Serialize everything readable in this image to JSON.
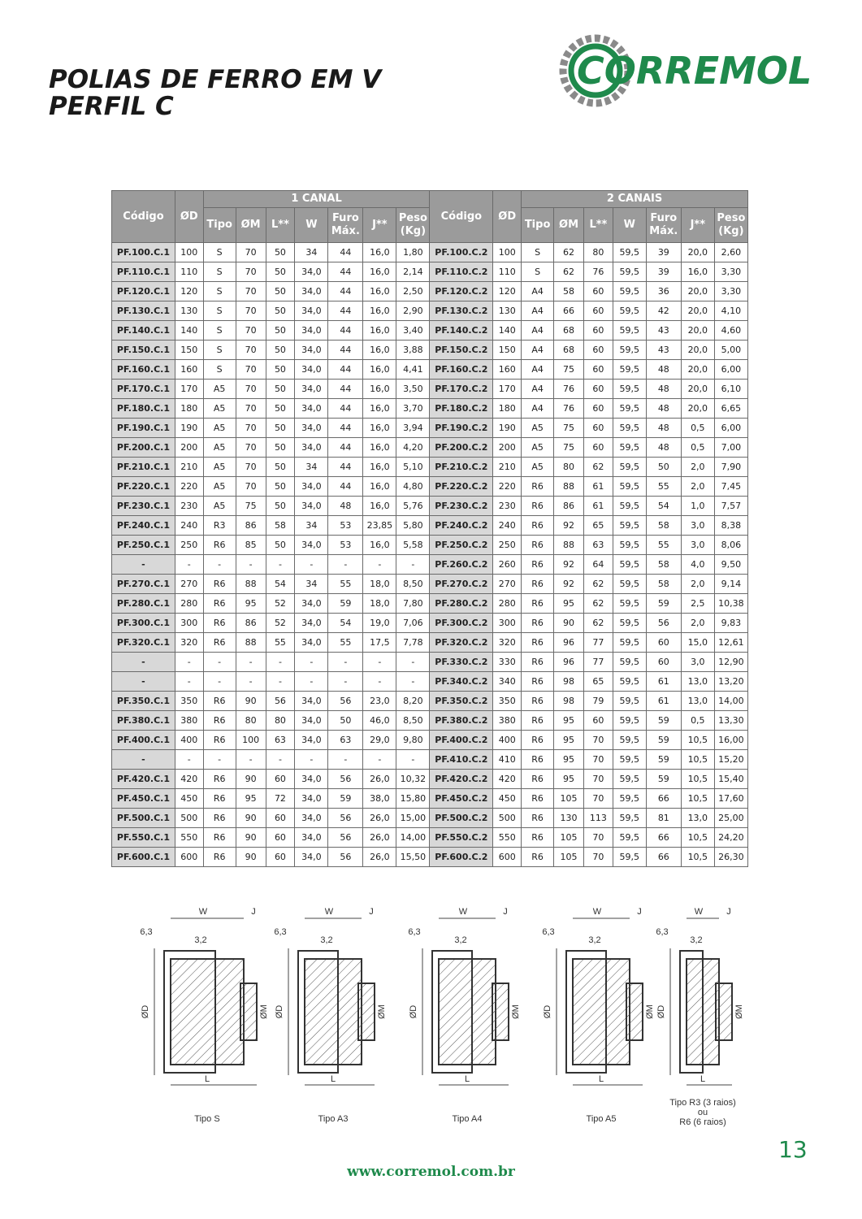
{
  "header": {
    "title_lines": [
      "POLIAS DE FERRO EM V",
      "PERFIL C"
    ],
    "logo": "CORREMOL"
  },
  "table": {
    "groups": [
      "1 CANAL",
      "2 CANAIS"
    ],
    "columns": [
      "Código",
      "ØD",
      "Tipo",
      "ØM",
      "L**",
      "W",
      "Furo Máx.",
      "J**",
      "Peso (Kg)"
    ],
    "rows": [
      [
        "PF.100.C.1",
        "100",
        "S",
        "70",
        "50",
        "34",
        "44",
        "16,0",
        "1,80",
        "PF.100.C.2",
        "100",
        "S",
        "62",
        "80",
        "59,5",
        "39",
        "20,0",
        "2,60"
      ],
      [
        "PF.110.C.1",
        "110",
        "S",
        "70",
        "50",
        "34,0",
        "44",
        "16,0",
        "2,14",
        "PF.110.C.2",
        "110",
        "S",
        "62",
        "76",
        "59,5",
        "39",
        "16,0",
        "3,30"
      ],
      [
        "PF.120.C.1",
        "120",
        "S",
        "70",
        "50",
        "34,0",
        "44",
        "16,0",
        "2,50",
        "PF.120.C.2",
        "120",
        "A4",
        "58",
        "60",
        "59,5",
        "36",
        "20,0",
        "3,30"
      ],
      [
        "PF.130.C.1",
        "130",
        "S",
        "70",
        "50",
        "34,0",
        "44",
        "16,0",
        "2,90",
        "PF.130.C.2",
        "130",
        "A4",
        "66",
        "60",
        "59,5",
        "42",
        "20,0",
        "4,10"
      ],
      [
        "PF.140.C.1",
        "140",
        "S",
        "70",
        "50",
        "34,0",
        "44",
        "16,0",
        "3,40",
        "PF.140.C.2",
        "140",
        "A4",
        "68",
        "60",
        "59,5",
        "43",
        "20,0",
        "4,60"
      ],
      [
        "PF.150.C.1",
        "150",
        "S",
        "70",
        "50",
        "34,0",
        "44",
        "16,0",
        "3,88",
        "PF.150.C.2",
        "150",
        "A4",
        "68",
        "60",
        "59,5",
        "43",
        "20,0",
        "5,00"
      ],
      [
        "PF.160.C.1",
        "160",
        "S",
        "70",
        "50",
        "34,0",
        "44",
        "16,0",
        "4,41",
        "PF.160.C.2",
        "160",
        "A4",
        "75",
        "60",
        "59,5",
        "48",
        "20,0",
        "6,00"
      ],
      [
        "PF.170.C.1",
        "170",
        "A5",
        "70",
        "50",
        "34,0",
        "44",
        "16,0",
        "3,50",
        "PF.170.C.2",
        "170",
        "A4",
        "76",
        "60",
        "59,5",
        "48",
        "20,0",
        "6,10"
      ],
      [
        "PF.180.C.1",
        "180",
        "A5",
        "70",
        "50",
        "34,0",
        "44",
        "16,0",
        "3,70",
        "PF.180.C.2",
        "180",
        "A4",
        "76",
        "60",
        "59,5",
        "48",
        "20,0",
        "6,65"
      ],
      [
        "PF.190.C.1",
        "190",
        "A5",
        "70",
        "50",
        "34,0",
        "44",
        "16,0",
        "3,94",
        "PF.190.C.2",
        "190",
        "A5",
        "75",
        "60",
        "59,5",
        "48",
        "0,5",
        "6,00"
      ],
      [
        "PF.200.C.1",
        "200",
        "A5",
        "70",
        "50",
        "34,0",
        "44",
        "16,0",
        "4,20",
        "PF.200.C.2",
        "200",
        "A5",
        "75",
        "60",
        "59,5",
        "48",
        "0,5",
        "7,00"
      ],
      [
        "PF.210.C.1",
        "210",
        "A5",
        "70",
        "50",
        "34",
        "44",
        "16,0",
        "5,10",
        "PF.210.C.2",
        "210",
        "A5",
        "80",
        "62",
        "59,5",
        "50",
        "2,0",
        "7,90"
      ],
      [
        "PF.220.C.1",
        "220",
        "A5",
        "70",
        "50",
        "34,0",
        "44",
        "16,0",
        "4,80",
        "PF.220.C.2",
        "220",
        "R6",
        "88",
        "61",
        "59,5",
        "55",
        "2,0",
        "7,45"
      ],
      [
        "PF.230.C.1",
        "230",
        "A5",
        "75",
        "50",
        "34,0",
        "48",
        "16,0",
        "5,76",
        "PF.230.C.2",
        "230",
        "R6",
        "86",
        "61",
        "59,5",
        "54",
        "1,0",
        "7,57"
      ],
      [
        "PF.240.C.1",
        "240",
        "R3",
        "86",
        "58",
        "34",
        "53",
        "23,85",
        "5,80",
        "PF.240.C.2",
        "240",
        "R6",
        "92",
        "65",
        "59,5",
        "58",
        "3,0",
        "8,38"
      ],
      [
        "PF.250.C.1",
        "250",
        "R6",
        "85",
        "50",
        "34,0",
        "53",
        "16,0",
        "5,58",
        "PF.250.C.2",
        "250",
        "R6",
        "88",
        "63",
        "59,5",
        "55",
        "3,0",
        "8,06"
      ],
      [
        "-",
        "-",
        "-",
        "-",
        "-",
        "-",
        "-",
        "-",
        "-",
        "PF.260.C.2",
        "260",
        "R6",
        "92",
        "64",
        "59,5",
        "58",
        "4,0",
        "9,50"
      ],
      [
        "PF.270.C.1",
        "270",
        "R6",
        "88",
        "54",
        "34",
        "55",
        "18,0",
        "8,50",
        "PF.270.C.2",
        "270",
        "R6",
        "92",
        "62",
        "59,5",
        "58",
        "2,0",
        "9,14"
      ],
      [
        "PF.280.C.1",
        "280",
        "R6",
        "95",
        "52",
        "34,0",
        "59",
        "18,0",
        "7,80",
        "PF.280.C.2",
        "280",
        "R6",
        "95",
        "62",
        "59,5",
        "59",
        "2,5",
        "10,38"
      ],
      [
        "PF.300.C.1",
        "300",
        "R6",
        "86",
        "52",
        "34,0",
        "54",
        "19,0",
        "7,06",
        "PF.300.C.2",
        "300",
        "R6",
        "90",
        "62",
        "59,5",
        "56",
        "2,0",
        "9,83"
      ],
      [
        "PF.320.C.1",
        "320",
        "R6",
        "88",
        "55",
        "34,0",
        "55",
        "17,5",
        "7,78",
        "PF.320.C.2",
        "320",
        "R6",
        "96",
        "77",
        "59,5",
        "60",
        "15,0",
        "12,61"
      ],
      [
        "-",
        "-",
        "-",
        "-",
        "-",
        "-",
        "-",
        "-",
        "-",
        "PF.330.C.2",
        "330",
        "R6",
        "96",
        "77",
        "59,5",
        "60",
        "3,0",
        "12,90"
      ],
      [
        "-",
        "-",
        "-",
        "-",
        "-",
        "-",
        "-",
        "-",
        "-",
        "PF.340.C.2",
        "340",
        "R6",
        "98",
        "65",
        "59,5",
        "61",
        "13,0",
        "13,20"
      ],
      [
        "PF.350.C.1",
        "350",
        "R6",
        "90",
        "56",
        "34,0",
        "56",
        "23,0",
        "8,20",
        "PF.350.C.2",
        "350",
        "R6",
        "98",
        "79",
        "59,5",
        "61",
        "13,0",
        "14,00"
      ],
      [
        "PF.380.C.1",
        "380",
        "R6",
        "80",
        "80",
        "34,0",
        "50",
        "46,0",
        "8,50",
        "PF.380.C.2",
        "380",
        "R6",
        "95",
        "60",
        "59,5",
        "59",
        "0,5",
        "13,30"
      ],
      [
        "PF.400.C.1",
        "400",
        "R6",
        "100",
        "63",
        "34,0",
        "63",
        "29,0",
        "9,80",
        "PF.400.C.2",
        "400",
        "R6",
        "95",
        "70",
        "59,5",
        "59",
        "10,5",
        "16,00"
      ],
      [
        "-",
        "-",
        "-",
        "-",
        "-",
        "-",
        "-",
        "-",
        "-",
        "PF.410.C.2",
        "410",
        "R6",
        "95",
        "70",
        "59,5",
        "59",
        "10,5",
        "15,20"
      ],
      [
        "PF.420.C.1",
        "420",
        "R6",
        "90",
        "60",
        "34,0",
        "56",
        "26,0",
        "10,32",
        "PF.420.C.2",
        "420",
        "R6",
        "95",
        "70",
        "59,5",
        "59",
        "10,5",
        "15,40"
      ],
      [
        "PF.450.C.1",
        "450",
        "R6",
        "95",
        "72",
        "34,0",
        "59",
        "38,0",
        "15,80",
        "PF.450.C.2",
        "450",
        "R6",
        "105",
        "70",
        "59,5",
        "66",
        "10,5",
        "17,60"
      ],
      [
        "PF.500.C.1",
        "500",
        "R6",
        "90",
        "60",
        "34,0",
        "56",
        "26,0",
        "15,00",
        "PF.500.C.2",
        "500",
        "R6",
        "130",
        "113",
        "59,5",
        "81",
        "13,0",
        "25,00"
      ],
      [
        "PF.550.C.1",
        "550",
        "R6",
        "90",
        "60",
        "34,0",
        "56",
        "26,0",
        "14,00",
        "PF.550.C.2",
        "550",
        "R6",
        "105",
        "70",
        "59,5",
        "66",
        "10,5",
        "24,20"
      ],
      [
        "PF.600.C.1",
        "600",
        "R6",
        "90",
        "60",
        "34,0",
        "56",
        "26,0",
        "15,50",
        "PF.600.C.2",
        "600",
        "R6",
        "105",
        "70",
        "59,5",
        "66",
        "10,5",
        "26,30"
      ]
    ]
  },
  "diagrams": [
    {
      "labels": [
        "W",
        "J",
        "6,3",
        "3,2",
        "ØD",
        "ØM",
        "L"
      ],
      "caption": [
        "Tipo S"
      ]
    },
    {
      "labels": [
        "W",
        "J",
        "6,3",
        "3,2",
        "ØD",
        "ØM",
        "L"
      ],
      "caption": [
        "Tipo A3"
      ]
    },
    {
      "labels": [
        "W",
        "J",
        "6,3",
        "3,2",
        "ØD",
        "ØM",
        "L"
      ],
      "caption": [
        "Tipo A4"
      ]
    },
    {
      "labels": [
        "W",
        "J",
        "6,3",
        "3,2",
        "ØD",
        "ØM",
        "L"
      ],
      "caption": [
        "Tipo A5"
      ]
    },
    {
      "labels": [
        "W",
        "J",
        "6,3",
        "3,2",
        "ØD",
        "ØM",
        "L"
      ],
      "caption": [
        "Tipo R3 (3 raios)",
        "ou",
        "R6 (6 raios)"
      ]
    }
  ],
  "footer": {
    "page_number": "13",
    "url": "www.corremol.com.br"
  }
}
